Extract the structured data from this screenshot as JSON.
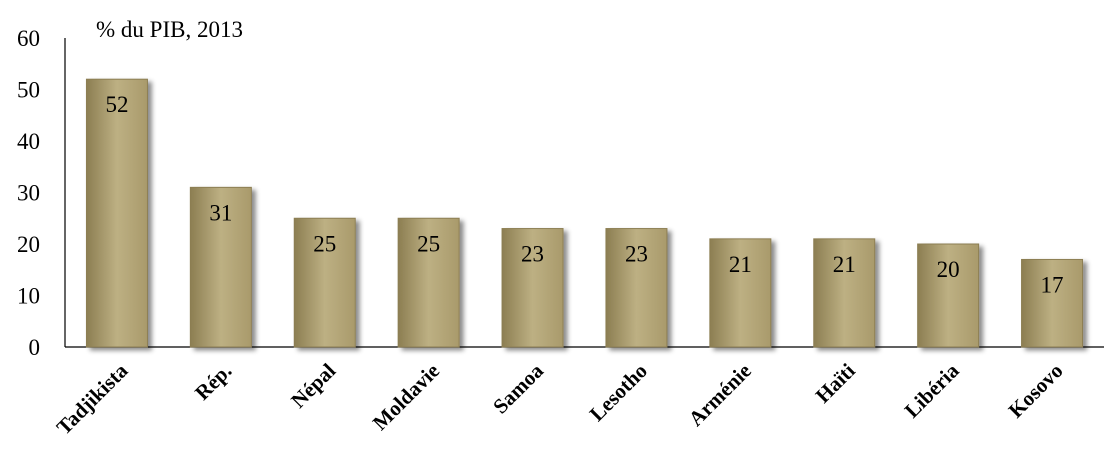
{
  "chart_data": {
    "type": "bar",
    "subtitle": "% du PIB, 2013",
    "categories": [
      "Tadjikista",
      "Rép.",
      "Népal",
      "Moldavie",
      "Samoa",
      "Lesotho",
      "Arménie",
      "Haïti",
      "Libéria",
      "Kosovo"
    ],
    "values": [
      52,
      31,
      25,
      25,
      23,
      23,
      21,
      21,
      20,
      17
    ],
    "data_labels": [
      "52",
      "31",
      "25",
      "25",
      "23",
      "23",
      "21",
      "21",
      "20",
      "17"
    ],
    "ylim": [
      0,
      60
    ],
    "yticks": [
      "0",
      "10",
      "20",
      "30",
      "40",
      "50",
      "60"
    ],
    "grid": false,
    "legend": "none",
    "colors": {
      "bar": "#A99A6B",
      "bar_light": "#BDB083",
      "bar_dark": "#8C7E52",
      "axis": "#000000"
    }
  }
}
